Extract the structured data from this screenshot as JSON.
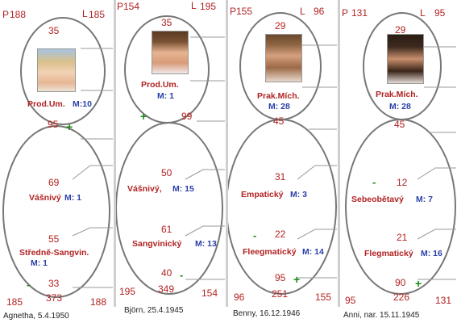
{
  "panels": [
    {
      "caption": "Agnetha, 5.4.1950",
      "corner_p": "P",
      "corner_p_val": "188",
      "corner_l": "L",
      "corner_l_val": "185",
      "top_val": "35",
      "type_label": "Prod.Um.",
      "type_m": "M:10",
      "mid_val": "95",
      "val_a": "69",
      "label_a": "Vášnivý",
      "m_a": "M: 1",
      "val_b": "55",
      "label_b": "Středně-Sangvin.",
      "m_b": "M: 1",
      "bottom_val": "33",
      "bottom_sum": "373",
      "bl": "185",
      "br": "188"
    },
    {
      "caption": "Björn, 25.4.1945",
      "corner_p": "P",
      "corner_p_val": "154",
      "corner_l": "L",
      "corner_l_val": "195",
      "top_val": "35",
      "type_label": "Prod.Um.",
      "type_m": "M: 1",
      "mid_val": "99",
      "val_a": "50",
      "label_a": "Vášnivý,",
      "m_a": "M: 15",
      "val_b": "61",
      "label_b": "Sangvinický",
      "m_b": "M: 13",
      "bottom_val": "40",
      "bottom_sum": "349",
      "bl": "195",
      "br": "154"
    },
    {
      "caption": "Benny, 16.12.1946",
      "corner_p": "P",
      "corner_p_val": "155",
      "corner_l": "L",
      "corner_l_val": "96",
      "top_val": "29",
      "type_label": "Prak.Mích.",
      "type_m": "M: 28",
      "mid_val": "45",
      "val_a": "31",
      "label_a": "Empatický",
      "m_a": "M: 3",
      "val_b": "22",
      "label_b": "Fleegmatický",
      "m_b": "M: 14",
      "bottom_val": "95",
      "bottom_sum": "251",
      "bl": "96",
      "br": "155"
    },
    {
      "caption": "Anni, nar. 15.11.1945",
      "corner_p": "P",
      "corner_p_val": "131",
      "corner_l": "L",
      "corner_l_val": "95",
      "top_val": "29",
      "type_label": "Prak.Mích.",
      "type_m": "M: 28",
      "mid_val": "45",
      "val_a": "12",
      "label_a": "Sebeobětavý",
      "m_a": "M: 7",
      "val_b": "21",
      "label_b": "Flegmatický",
      "m_b": "M: 16",
      "bottom_val": "90",
      "bottom_sum": "226",
      "bl": "95",
      "br": "131"
    }
  ],
  "symbols": {
    "plus": "+",
    "minus": "-"
  },
  "colors": {
    "value_red": "#b22222",
    "m_blue": "#2b3fa8",
    "sign_green": "#1a8a1a",
    "outline": "#777777"
  }
}
